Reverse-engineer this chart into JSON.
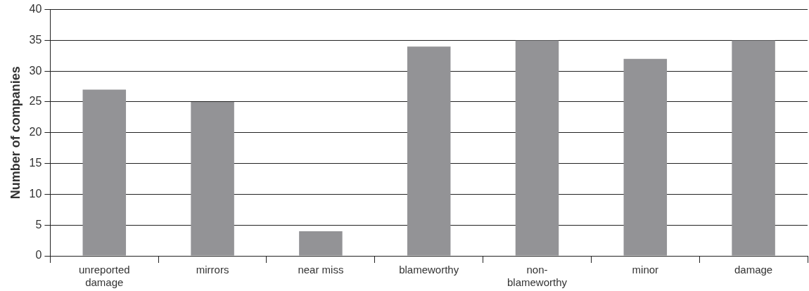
{
  "chart_data": {
    "type": "bar",
    "ylabel": "Number of companies",
    "categories": [
      "unreported damage",
      "mirrors",
      "near miss",
      "blameworthy",
      "non-blameworthy",
      "minor",
      "damage"
    ],
    "values": [
      27,
      25,
      4,
      34,
      35,
      32,
      35
    ],
    "color": "#939396",
    "ylim": [
      0,
      40
    ],
    "yticks": [
      0,
      5,
      10,
      15,
      20,
      25,
      30,
      35,
      40
    ],
    "grid": "y",
    "legend": false
  }
}
